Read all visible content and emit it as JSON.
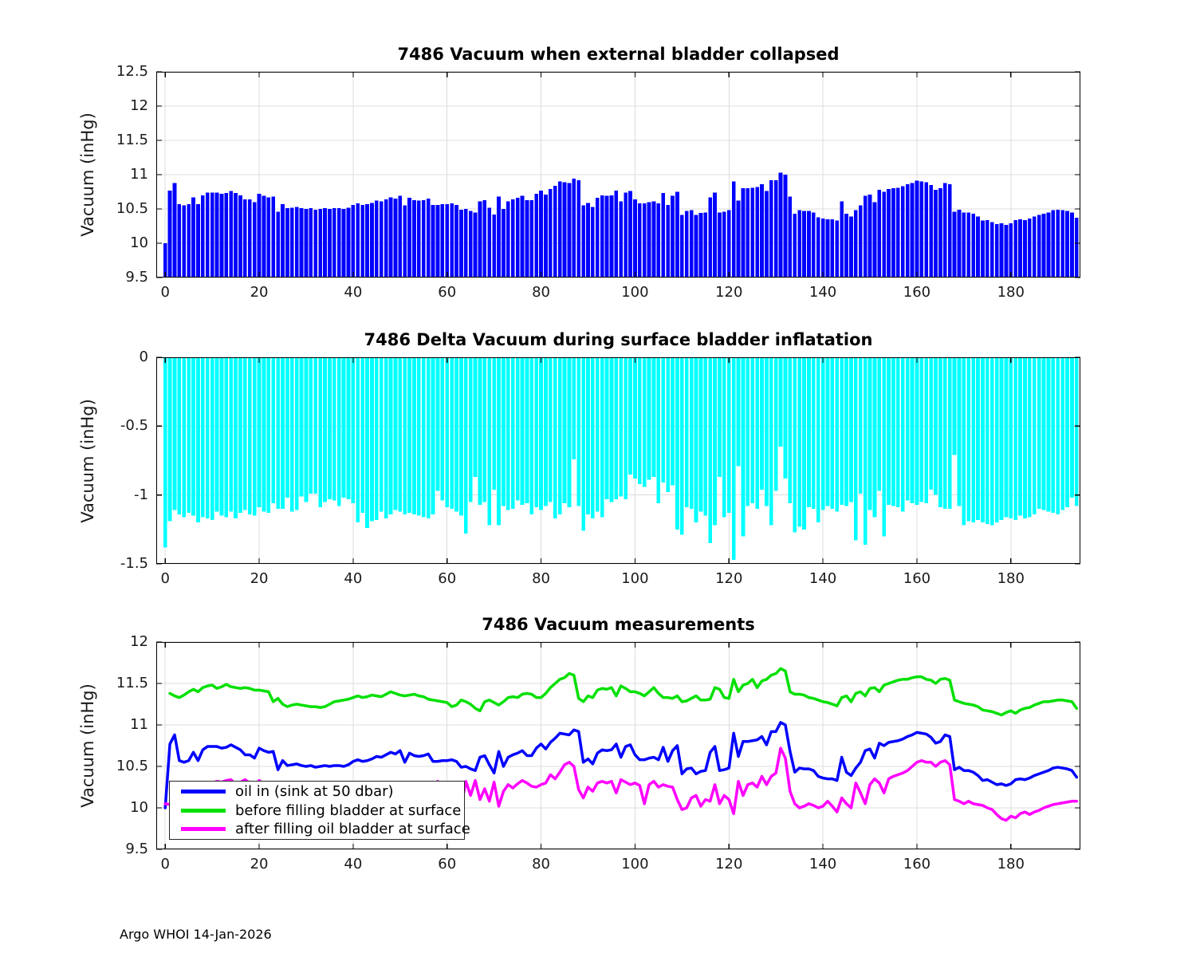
{
  "figure": {
    "footer": "Argo WHOI 14-Jan-2026"
  },
  "chart_data": [
    {
      "type": "bar",
      "title": "7486 Vacuum when external bladder collapsed",
      "ylabel": "Vacuum (inHg)",
      "xlabel": "",
      "color": "#0000ff",
      "grid": true,
      "xlim": [
        -1.9,
        194.8
      ],
      "ylim": [
        9.5,
        12.5
      ],
      "baseline": 9.5,
      "xticks": [
        "0",
        "20",
        "40",
        "60",
        "80",
        "100",
        "120",
        "140",
        "160",
        "180"
      ],
      "yticks": [
        "9.5",
        "10",
        "10.5",
        "11",
        "11.5",
        "12",
        "12.5"
      ],
      "x_start": 0,
      "values": [
        10,
        10.77,
        10.88,
        10.57,
        10.55,
        10.57,
        10.67,
        10.57,
        10.7,
        10.74,
        10.74,
        10.74,
        10.72,
        10.73,
        10.76,
        10.73,
        10.7,
        10.64,
        10.64,
        10.6,
        10.72,
        10.69,
        10.67,
        10.68,
        10.46,
        10.57,
        10.51,
        10.52,
        10.53,
        10.51,
        10.5,
        10.51,
        10.49,
        10.5,
        10.51,
        10.5,
        10.51,
        10.51,
        10.5,
        10.52,
        10.56,
        10.58,
        10.56,
        10.57,
        10.59,
        10.62,
        10.61,
        10.64,
        10.67,
        10.65,
        10.69,
        10.55,
        10.66,
        10.63,
        10.62,
        10.63,
        10.65,
        10.56,
        10.56,
        10.57,
        10.57,
        10.58,
        10.56,
        10.49,
        10.5,
        10.47,
        10.45,
        10.61,
        10.63,
        10.52,
        10.42,
        10.68,
        10.5,
        10.61,
        10.64,
        10.66,
        10.69,
        10.63,
        10.63,
        10.72,
        10.77,
        10.71,
        10.79,
        10.84,
        10.9,
        10.89,
        10.88,
        10.94,
        10.92,
        10.55,
        10.59,
        10.53,
        10.66,
        10.7,
        10.69,
        10.7,
        10.77,
        10.61,
        10.74,
        10.76,
        10.64,
        10.58,
        10.58,
        10.6,
        10.61,
        10.58,
        10.73,
        10.56,
        10.69,
        10.75,
        10.41,
        10.47,
        10.48,
        10.41,
        10.44,
        10.45,
        10.67,
        10.74,
        10.45,
        10.46,
        10.48,
        10.9,
        10.62,
        10.8,
        10.8,
        10.81,
        10.82,
        10.86,
        10.76,
        10.92,
        10.92,
        11.03,
        11,
        10.68,
        10.43,
        10.48,
        10.47,
        10.47,
        10.45,
        10.38,
        10.36,
        10.35,
        10.35,
        10.33,
        10.61,
        10.43,
        10.39,
        10.48,
        10.55,
        10.69,
        10.71,
        10.6,
        10.78,
        10.75,
        10.79,
        10.8,
        10.81,
        10.83,
        10.86,
        10.88,
        10.91,
        10.9,
        10.89,
        10.85,
        10.78,
        10.8,
        10.88,
        10.86,
        10.46,
        10.49,
        10.45,
        10.45,
        10.43,
        10.39,
        10.33,
        10.34,
        10.31,
        10.28,
        10.29,
        10.27,
        10.29,
        10.34,
        10.35,
        10.34,
        10.36,
        10.39,
        10.41,
        10.43,
        10.45,
        10.48,
        10.49,
        10.48,
        10.47,
        10.45,
        10.37
      ]
    },
    {
      "type": "bar",
      "title": "7486 Delta Vacuum during surface bladder inflatation",
      "ylabel": "Vacuum (inHg)",
      "xlabel": "",
      "color": "#00ffff",
      "grid": true,
      "xlim": [
        -1.9,
        194.8
      ],
      "ylim": [
        -1.5,
        0
      ],
      "baseline": 0,
      "xticks": [
        "0",
        "20",
        "40",
        "60",
        "80",
        "100",
        "120",
        "140",
        "160",
        "180"
      ],
      "yticks": [
        "-1.5",
        "-1",
        "-0.5",
        "0"
      ],
      "x_start": 0,
      "values": [
        -1.38,
        -1.19,
        -1.11,
        -1.14,
        -1.16,
        -1.13,
        -1.15,
        -1.2,
        -1.16,
        -1.17,
        -1.18,
        -1.12,
        -1.15,
        -1.16,
        -1.12,
        -1.17,
        -1.13,
        -1.11,
        -1.14,
        -1.15,
        -1.09,
        -1.12,
        -1.13,
        -1.06,
        -1.1,
        -1.1,
        -1.02,
        -1.12,
        -1.11,
        -1.01,
        -1.05,
        -0.99,
        -0.99,
        -1.09,
        -1.05,
        -1.03,
        -1.04,
        -1.08,
        -1.02,
        -1.03,
        -1.06,
        -1.2,
        -1.13,
        -1.24,
        -1.19,
        -1.18,
        -1.12,
        -1.17,
        -1.14,
        -1.11,
        -1.12,
        -1.14,
        -1.13,
        -1.14,
        -1.15,
        -1.16,
        -1.17,
        -1.14,
        -0.97,
        -1.04,
        -1.09,
        -1.1,
        -1.12,
        -1.15,
        -1.28,
        -1.05,
        -0.87,
        -1.07,
        -1.05,
        -1.22,
        -0.96,
        -1.22,
        -1.08,
        -1.11,
        -1.1,
        -1.04,
        -1.07,
        -1.06,
        -1.14,
        -1.09,
        -1.11,
        -1.08,
        -1.05,
        -1.17,
        -1.14,
        -1.06,
        -1.09,
        -0.74,
        -1.08,
        -1.26,
        -1.14,
        -1.17,
        -1.12,
        -1.16,
        -1.03,
        -1.05,
        -1.03,
        -1.01,
        -1.03,
        -0.85,
        -0.88,
        -0.92,
        -0.94,
        -0.89,
        -0.87,
        -1.06,
        -0.91,
        -0.98,
        -0.93,
        -1.25,
        -1.29,
        -1.09,
        -1.1,
        -1.2,
        -1.12,
        -1.15,
        -1.35,
        -1.22,
        -0.87,
        -1.16,
        -1.13,
        -1.47,
        -0.79,
        -1.3,
        -1.08,
        -1.06,
        -1.1,
        -0.96,
        -1.08,
        -1.22,
        -0.97,
        -0.65,
        -0.88,
        -1.06,
        -1.27,
        -1.23,
        -1.25,
        -1.09,
        -1.1,
        -1.2,
        -1.11,
        -1.08,
        -1.1,
        -1.12,
        -1.07,
        -1.08,
        -1.05,
        -1.33,
        -0.99,
        -1.36,
        -1.11,
        -1.16,
        -0.97,
        -1.3,
        -1.07,
        -1.08,
        -1.09,
        -1.12,
        -1.04,
        -1.06,
        -1.07,
        -1.05,
        -1.06,
        -0.96,
        -1,
        -1.09,
        -1.1,
        -1.1,
        -0.71,
        -1.08,
        -1.22,
        -1.19,
        -1.2,
        -1.18,
        -1.2,
        -1.21,
        -1.22,
        -1.2,
        -1.18,
        -1.16,
        -1.17,
        -1.18,
        -1.15,
        -1.17,
        -1.16,
        -1.14,
        -1.1,
        -1.11,
        -1.12,
        -1.13,
        -1.14,
        -1.11,
        -1.09,
        -1.02,
        -1.08
      ]
    },
    {
      "type": "line",
      "title": "7486 Vacuum measurements",
      "ylabel": "Vacuum (inHg)",
      "xlabel": "",
      "grid": true,
      "xlim": [
        -1.9,
        194.8
      ],
      "ylim": [
        9.5,
        12
      ],
      "xticks": [
        "0",
        "20",
        "40",
        "60",
        "80",
        "100",
        "120",
        "140",
        "160",
        "180"
      ],
      "yticks": [
        "9.5",
        "10",
        "10.5",
        "11",
        "11.5",
        "12"
      ],
      "x_start": 0,
      "legend_position": "lower-left",
      "series": [
        {
          "label": "oil in (sink at 50 dbar)",
          "color": "#0000ff",
          "values": [
            10,
            10.77,
            10.88,
            10.57,
            10.55,
            10.57,
            10.67,
            10.57,
            10.7,
            10.74,
            10.74,
            10.74,
            10.72,
            10.73,
            10.76,
            10.73,
            10.7,
            10.64,
            10.64,
            10.6,
            10.72,
            10.69,
            10.67,
            10.68,
            10.46,
            10.57,
            10.51,
            10.52,
            10.53,
            10.51,
            10.5,
            10.51,
            10.49,
            10.5,
            10.51,
            10.5,
            10.51,
            10.51,
            10.5,
            10.52,
            10.56,
            10.58,
            10.56,
            10.57,
            10.59,
            10.62,
            10.61,
            10.64,
            10.67,
            10.65,
            10.69,
            10.55,
            10.66,
            10.63,
            10.62,
            10.63,
            10.65,
            10.56,
            10.56,
            10.57,
            10.57,
            10.58,
            10.56,
            10.49,
            10.5,
            10.47,
            10.45,
            10.61,
            10.63,
            10.52,
            10.42,
            10.68,
            10.5,
            10.61,
            10.64,
            10.66,
            10.69,
            10.63,
            10.63,
            10.72,
            10.77,
            10.71,
            10.79,
            10.84,
            10.9,
            10.89,
            10.88,
            10.94,
            10.92,
            10.55,
            10.59,
            10.53,
            10.66,
            10.7,
            10.69,
            10.7,
            10.77,
            10.61,
            10.74,
            10.76,
            10.64,
            10.58,
            10.58,
            10.6,
            10.61,
            10.58,
            10.73,
            10.56,
            10.69,
            10.75,
            10.41,
            10.47,
            10.48,
            10.41,
            10.44,
            10.45,
            10.67,
            10.74,
            10.45,
            10.46,
            10.48,
            10.9,
            10.62,
            10.8,
            10.8,
            10.81,
            10.82,
            10.86,
            10.76,
            10.92,
            10.92,
            11.03,
            11,
            10.68,
            10.43,
            10.48,
            10.47,
            10.47,
            10.45,
            10.38,
            10.36,
            10.35,
            10.35,
            10.33,
            10.61,
            10.43,
            10.39,
            10.48,
            10.55,
            10.69,
            10.71,
            10.6,
            10.78,
            10.75,
            10.79,
            10.8,
            10.81,
            10.83,
            10.86,
            10.88,
            10.91,
            10.9,
            10.89,
            10.85,
            10.78,
            10.8,
            10.88,
            10.86,
            10.46,
            10.49,
            10.45,
            10.45,
            10.43,
            10.39,
            10.33,
            10.34,
            10.31,
            10.28,
            10.29,
            10.27,
            10.29,
            10.34,
            10.35,
            10.34,
            10.36,
            10.39,
            10.41,
            10.43,
            10.45,
            10.48,
            10.49,
            10.48,
            10.47,
            10.45,
            10.37
          ]
        },
        {
          "label": "before filling bladder at surface",
          "color": "#00e000",
          "values": [
            null,
            11.38,
            11.35,
            11.33,
            11.36,
            11.4,
            11.43,
            11.4,
            11.45,
            11.47,
            11.48,
            11.44,
            11.46,
            11.49,
            11.46,
            11.45,
            11.44,
            11.45,
            11.44,
            11.42,
            11.42,
            11.41,
            11.4,
            11.28,
            11.32,
            11.25,
            11.22,
            11.24,
            11.25,
            11.24,
            11.23,
            11.22,
            11.22,
            11.21,
            11.22,
            11.25,
            11.28,
            11.29,
            11.3,
            11.31,
            11.33,
            11.35,
            11.33,
            11.34,
            11.36,
            11.35,
            11.34,
            11.37,
            11.4,
            11.38,
            11.36,
            11.35,
            11.36,
            11.37,
            11.35,
            11.34,
            11.31,
            11.3,
            11.29,
            11.28,
            11.27,
            11.22,
            11.24,
            11.3,
            11.28,
            11.25,
            11.2,
            11.17,
            11.28,
            11.3,
            11.27,
            11.24,
            11.28,
            11.33,
            11.34,
            11.33,
            11.37,
            11.38,
            11.37,
            11.33,
            11.33,
            11.38,
            11.45,
            11.5,
            11.55,
            11.57,
            11.62,
            11.6,
            11.32,
            11.28,
            11.35,
            11.33,
            11.42,
            11.44,
            11.43,
            11.45,
            11.35,
            11.47,
            11.44,
            11.4,
            11.4,
            11.38,
            11.35,
            11.4,
            11.45,
            11.38,
            11.33,
            11.33,
            11.32,
            11.35,
            11.28,
            11.29,
            11.32,
            11.35,
            11.3,
            11.3,
            11.31,
            11.45,
            11.43,
            11.33,
            11.32,
            11.55,
            11.4,
            11.48,
            11.5,
            11.55,
            11.45,
            11.53,
            11.55,
            11.6,
            11.62,
            11.68,
            11.65,
            11.4,
            11.37,
            11.37,
            11.36,
            11.33,
            11.32,
            11.3,
            11.28,
            11.27,
            11.25,
            11.23,
            11.33,
            11.35,
            11.28,
            11.38,
            11.4,
            11.35,
            11.44,
            11.45,
            11.4,
            11.48,
            11.5,
            11.52,
            11.54,
            11.55,
            11.55,
            11.57,
            11.58,
            11.58,
            11.55,
            11.54,
            11.5,
            11.55,
            11.56,
            11.54,
            11.3,
            11.28,
            11.26,
            11.25,
            11.24,
            11.22,
            11.18,
            11.17,
            11.16,
            11.14,
            11.12,
            11.15,
            11.17,
            11.14,
            11.18,
            11.2,
            11.21,
            11.24,
            11.26,
            11.28,
            11.28,
            11.29,
            11.3,
            11.3,
            11.29,
            11.28,
            11.2
          ]
        },
        {
          "label": "after filling oil bladder at surface",
          "color": "#ff00ff",
          "values": [
            10.05,
            10.04,
            10.02,
            10.19,
            10.2,
            10.27,
            10.28,
            10.2,
            10.29,
            10.3,
            10.3,
            10.32,
            10.31,
            10.33,
            10.34,
            10.28,
            10.31,
            10.34,
            10.3,
            10.27,
            10.33,
            10.29,
            10.27,
            10.22,
            10.22,
            10.15,
            10.2,
            10.12,
            10.14,
            10.23,
            10.18,
            10.23,
            10.23,
            10.12,
            10.17,
            10.22,
            10.24,
            10.21,
            10.28,
            10.28,
            10.27,
            10.15,
            10.2,
            10.1,
            10.17,
            10.17,
            10.22,
            10.2,
            10.26,
            10.27,
            10.24,
            10.21,
            10.23,
            10.23,
            10.2,
            10.18,
            10.14,
            10.16,
            10.32,
            10.24,
            10.18,
            10.05,
            10.03,
            10.02,
            10.32,
            10.15,
            10.33,
            10.1,
            10.23,
            10.08,
            10.31,
            10.02,
            10.2,
            10.28,
            10.24,
            10.29,
            10.33,
            10.3,
            10.26,
            10.25,
            10.28,
            10.3,
            10.4,
            10.35,
            10.43,
            10.52,
            10.55,
            10.5,
            10.22,
            10.12,
            10.25,
            10.2,
            10.3,
            10.32,
            10.3,
            10.32,
            10.18,
            10.34,
            10.31,
            10.28,
            10.3,
            10.27,
            10.05,
            10.28,
            10.32,
            10.25,
            10.28,
            10.26,
            10.25,
            10.1,
            9.98,
            10,
            10.12,
            10.15,
            10.02,
            10.1,
            10.08,
            10.28,
            10.05,
            10.15,
            10.1,
            9.93,
            10.32,
            10.15,
            10.28,
            10.3,
            10.25,
            10.38,
            10.28,
            10.38,
            10.42,
            10.72,
            10.6,
            10.2,
            10.05,
            10,
            10.02,
            10.05,
            10.03,
            10,
            10.02,
            10.08,
            10.02,
            9.95,
            10.12,
            10.05,
            10,
            10.3,
            10.18,
            10.05,
            10.28,
            10.35,
            10.3,
            10.18,
            10.35,
            10.38,
            10.4,
            10.42,
            10.45,
            10.5,
            10.55,
            10.57,
            10.55,
            10.55,
            10.5,
            10.55,
            10.57,
            10.52,
            10.1,
            10.08,
            10.05,
            10.08,
            10.05,
            10.04,
            10.03,
            10,
            9.98,
            9.92,
            9.87,
            9.85,
            9.9,
            9.88,
            9.93,
            9.95,
            9.92,
            9.95,
            9.97,
            10,
            10.02,
            10.04,
            10.05,
            10.06,
            10.07,
            10.08,
            10.08
          ]
        }
      ]
    }
  ]
}
